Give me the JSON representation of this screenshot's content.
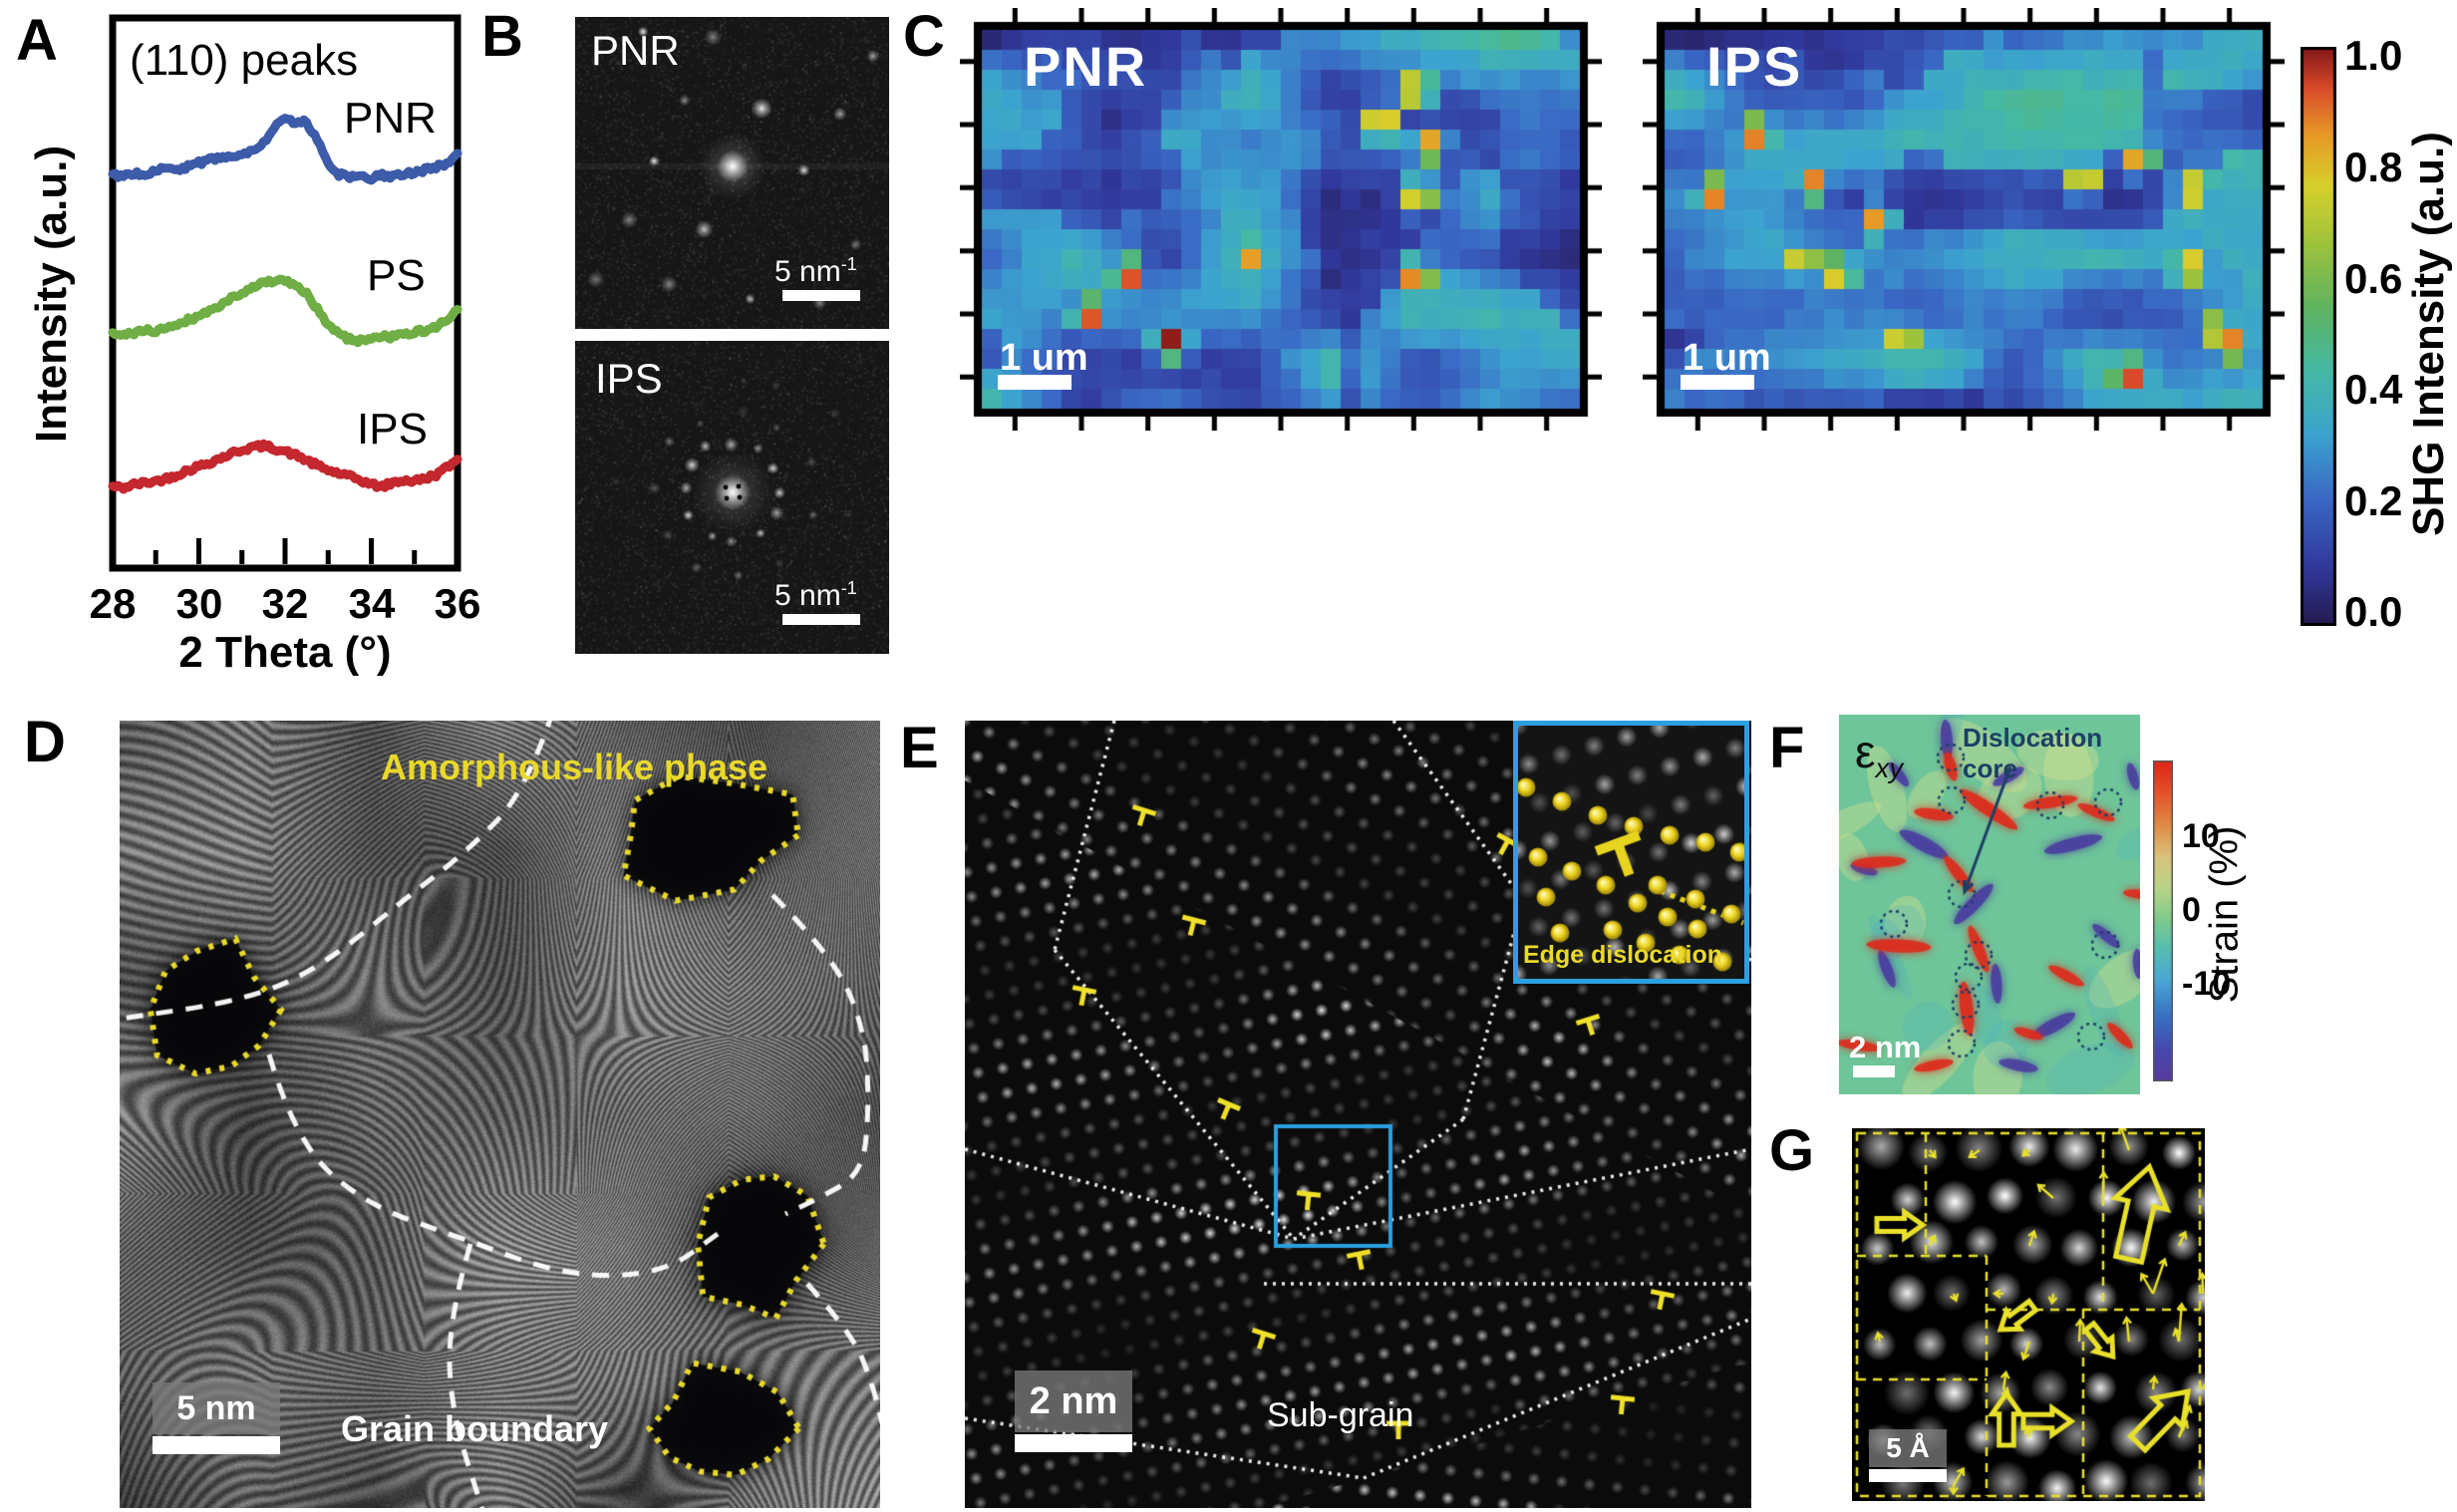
{
  "panel_a": {
    "letter": "A",
    "title": "(110) peaks",
    "x_label": "2 Theta (°)",
    "y_label": "Intensity (a.u.)",
    "x_ticks": [
      "28",
      "30",
      "32",
      "34",
      "36"
    ]
  },
  "chart_data": {
    "type": "line",
    "title": "(110) peaks",
    "xlabel": "2 Theta (°)",
    "ylabel": "Intensity (a.u.)",
    "xlim": [
      28,
      36
    ],
    "x_step": 0.25,
    "grid": false,
    "note": "XRD intensity in arbitrary units; curves vertically offset, values are fraction of plot height",
    "series": [
      {
        "name": "PNR",
        "color": "#3c5ba8",
        "values": [
          0.715,
          0.713,
          0.718,
          0.716,
          0.722,
          0.726,
          0.724,
          0.73,
          0.736,
          0.742,
          0.744,
          0.75,
          0.752,
          0.762,
          0.774,
          0.8,
          0.818,
          0.806,
          0.812,
          0.776,
          0.738,
          0.716,
          0.71,
          0.712,
          0.708,
          0.714,
          0.71,
          0.716,
          0.72,
          0.724,
          0.728,
          0.736,
          0.754
        ]
      },
      {
        "name": "PS",
        "color": "#6fae45",
        "values": [
          0.425,
          0.422,
          0.428,
          0.432,
          0.43,
          0.438,
          0.444,
          0.452,
          0.458,
          0.468,
          0.478,
          0.49,
          0.502,
          0.512,
          0.518,
          0.523,
          0.52,
          0.515,
          0.498,
          0.47,
          0.443,
          0.425,
          0.416,
          0.413,
          0.418,
          0.422,
          0.42,
          0.425,
          0.428,
          0.432,
          0.438,
          0.452,
          0.47
        ]
      },
      {
        "name": "IPS",
        "color": "#c4272e",
        "values": [
          0.148,
          0.146,
          0.152,
          0.155,
          0.158,
          0.163,
          0.17,
          0.178,
          0.185,
          0.192,
          0.2,
          0.208,
          0.215,
          0.22,
          0.222,
          0.218,
          0.212,
          0.205,
          0.196,
          0.186,
          0.178,
          0.172,
          0.166,
          0.16,
          0.152,
          0.148,
          0.155,
          0.16,
          0.158,
          0.163,
          0.17,
          0.182,
          0.198
        ]
      }
    ]
  },
  "panel_b": {
    "letter": "B",
    "images": [
      {
        "label": "PNR"
      },
      {
        "label": "IPS"
      }
    ],
    "scalebar": {
      "value": "5 nm",
      "sup": "-1"
    }
  },
  "panel_c": {
    "letter": "C",
    "maps": [
      {
        "label": "PNR"
      },
      {
        "label": "IPS"
      }
    ],
    "scalebar": "1 um",
    "colorbar": {
      "ticks": [
        "1.0",
        "0.8",
        "0.6",
        "0.4",
        "0.2",
        "0.0"
      ],
      "label": "SHG Intensity (a.u.)"
    }
  },
  "panel_d": {
    "letter": "D",
    "amorphous": "Amorphous-like phase",
    "grain": "Grain boundary",
    "scalebar": "5 nm"
  },
  "panel_e": {
    "letter": "E",
    "inset_label": "Edge dislocation",
    "subgrain": "Sub-grain",
    "scalebar": "2 nm"
  },
  "panel_f": {
    "letter": "F",
    "map_label": {
      "symbol": "ε",
      "sub": "xy"
    },
    "annotation": "Dislocation core",
    "scalebar": "2 nm",
    "colorbar": {
      "ticks": [
        "10",
        "0",
        "-10"
      ],
      "label": "Strain (%)"
    }
  },
  "panel_g": {
    "letter": "G",
    "scalebar": "5 Å"
  },
  "colors": {
    "annotation_yellow": "#e9d92b",
    "inset_border_blue": "#2aa0e0",
    "navy": "#1c3f66",
    "scalebar_white": "#ffffff",
    "shg_colormap": [
      [
        0,
        "#241a4d"
      ],
      [
        0.1,
        "#31389b"
      ],
      [
        0.22,
        "#3a68c4"
      ],
      [
        0.33,
        "#3ca3cf"
      ],
      [
        0.44,
        "#45b9a5"
      ],
      [
        0.55,
        "#5fb35f"
      ],
      [
        0.66,
        "#9ec33c"
      ],
      [
        0.76,
        "#d7d02c"
      ],
      [
        0.85,
        "#e79727"
      ],
      [
        0.93,
        "#d8492a"
      ],
      [
        1,
        "#801518"
      ]
    ],
    "strain_colormap": [
      [
        0,
        "#5a3b9e"
      ],
      [
        0.1,
        "#4549ae"
      ],
      [
        0.2,
        "#3a6fc2"
      ],
      [
        0.32,
        "#49a8d4"
      ],
      [
        0.42,
        "#57bfae"
      ],
      [
        0.5,
        "#7cc98c"
      ],
      [
        0.6,
        "#b8d488"
      ],
      [
        0.7,
        "#d9c27c"
      ],
      [
        0.8,
        "#e08a44"
      ],
      [
        0.9,
        "#e4512a"
      ],
      [
        1,
        "#df2318"
      ]
    ]
  }
}
